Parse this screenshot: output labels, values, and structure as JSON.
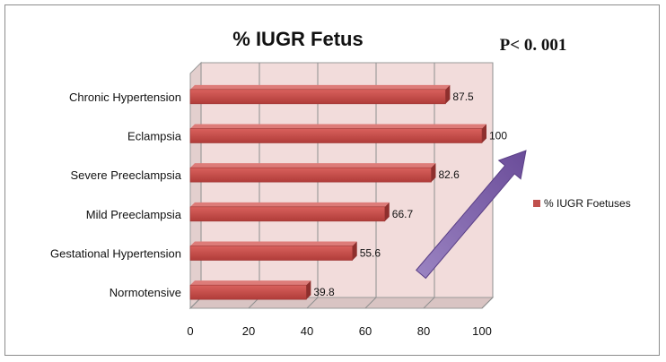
{
  "chart_data": {
    "type": "bar",
    "orientation": "horizontal",
    "title": "% IUGR Fetus",
    "annotation": "P< 0. 001",
    "categories": [
      "Chronic Hypertension",
      "Eclampsia",
      "Severe Preeclampsia",
      "Mild Preeclampsia",
      "Gestational Hypertension",
      "Normotensive"
    ],
    "series": [
      {
        "name": "% IUGR Foetuses",
        "values": [
          87.5,
          100,
          82.6,
          66.7,
          55.6,
          39.8
        ],
        "color": "#c0504d"
      }
    ],
    "data_labels": [
      "87.5",
      "100",
      "82.6",
      "66.7",
      "55.6",
      "39.8"
    ],
    "xlim": [
      0,
      100
    ],
    "xticks": [
      0,
      20,
      40,
      60,
      80,
      100
    ],
    "xtick_labels": [
      "0",
      "20",
      "40",
      "60",
      "80",
      "100"
    ],
    "grid": true,
    "legend_position": "right",
    "plot_background": "#f2dcdb",
    "arrow_color": "#8064a2"
  }
}
